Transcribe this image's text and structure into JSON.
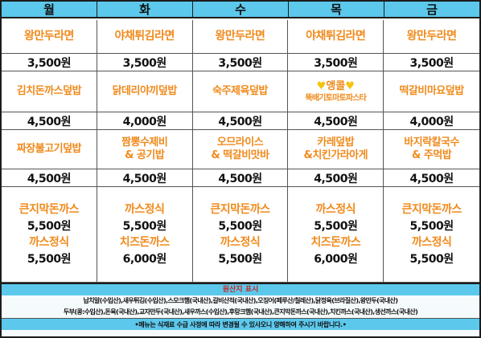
{
  "days": [
    "월",
    "화",
    "수",
    "목",
    "금"
  ],
  "rows": [
    {
      "dishes": [
        {
          "name": "왕만두라면"
        },
        {
          "name": "야채튀김라면"
        },
        {
          "name": "왕만두라면"
        },
        {
          "name": "야채튀김라면"
        },
        {
          "name": "왕만두라면"
        }
      ],
      "prices": [
        "3,500원",
        "3,500원",
        "3,500원",
        "3,500원",
        "3,500원"
      ]
    },
    {
      "dishes": [
        {
          "name": "김치돈까스덮밥"
        },
        {
          "name": "닭데리야끼덮밥"
        },
        {
          "name": "숙주제육덮밥"
        },
        {
          "special": "♥앵콜♥",
          "name": "뚝배기토마토파스타"
        },
        {
          "name": "떡갈비마요덮밥"
        }
      ],
      "prices": [
        "4,500원",
        "4,000원",
        "4,500원",
        "4,500원",
        "4,000원"
      ]
    },
    {
      "dishes": [
        {
          "name": "짜장불고기덮밥"
        },
        {
          "line1": "짬뽕수제비",
          "line2": "& 공기밥"
        },
        {
          "line1": "오므라이스",
          "line2": "& 떡갈비맛바"
        },
        {
          "line1": "카레덮밥",
          "line2": "&치킨가라아게"
        },
        {
          "line1": "바지락칼국수",
          "line2": "& 주먹밥"
        }
      ],
      "prices": [
        "4,500원",
        "4,500원",
        "4,500원",
        "4,500원",
        "4,500원"
      ]
    }
  ],
  "cutlets": [
    [
      "큰지막돈까스",
      "5,500원",
      "까스정식",
      "5,500원"
    ],
    [
      "까스정식",
      "5,500원",
      "치즈돈까스",
      "6,000원"
    ],
    [
      "큰지막돈까스",
      "5,500원",
      "까스정식",
      "5,500원"
    ],
    [
      "까스정식",
      "5,500원",
      "치즈돈까스",
      "6,000원"
    ],
    [
      "큰지막돈까스",
      "5,500원",
      "까스정식",
      "5,500원"
    ]
  ],
  "origin": {
    "title": "원산지 표시",
    "line1": "납치알(수입산),새우튀김(수입산),스모크햄(국내산),갈비산적(국내산),오징어(페루산/칠레산),닭정육(브라질산),왕만두(국내산)",
    "line2": "두부(콩:수입산),돈육(국내산),교자만두(국내산),새우까스(수입산),후랑크햄(국내산),큰지막돈까스(국내산),치킨까스(국내산),생선까스(국내산)"
  },
  "notice": "•메뉴는 식재료 수급 사정에 따라 변경될 수 있사오니 양해하여 주시기 바랍니다.•",
  "colors": {
    "header": "#5cc8eb",
    "dish": "#f08a1c",
    "heart": "#f2c40f",
    "origin_title": "#c62828"
  }
}
